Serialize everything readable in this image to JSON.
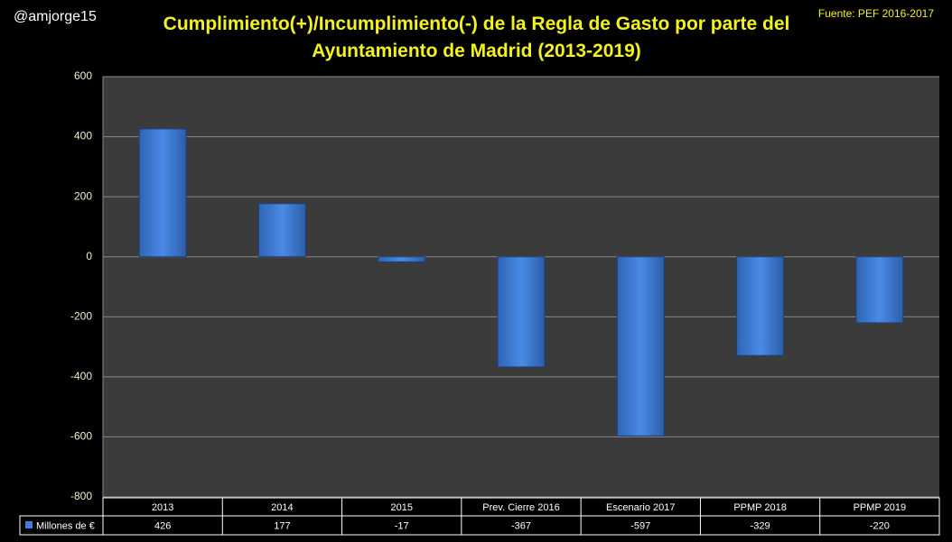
{
  "chart_data": {
    "type": "bar",
    "title": "Cumplimiento(+)/Incumplimiento(-) de la Regla de Gasto por parte del Ayuntamiento de Madrid (2013-2019)",
    "author": "@amjorge15",
    "source": "Fuente: PEF 2016-2017",
    "categories": [
      "2013",
      "2014",
      "2015",
      "Prev. Cierre 2016",
      "Escenario 2017",
      "PPMP 2018",
      "PPMP 2019"
    ],
    "series": [
      {
        "name": "Millones de €",
        "color": "#3f7ed8",
        "values": [
          426,
          177,
          -17,
          -367,
          -597,
          -329,
          -220
        ]
      }
    ],
    "ylim": [
      -800,
      600
    ],
    "yticks": [
      -800,
      -600,
      -400,
      -200,
      0,
      200,
      400,
      600
    ],
    "grid": true,
    "data_table": true
  }
}
